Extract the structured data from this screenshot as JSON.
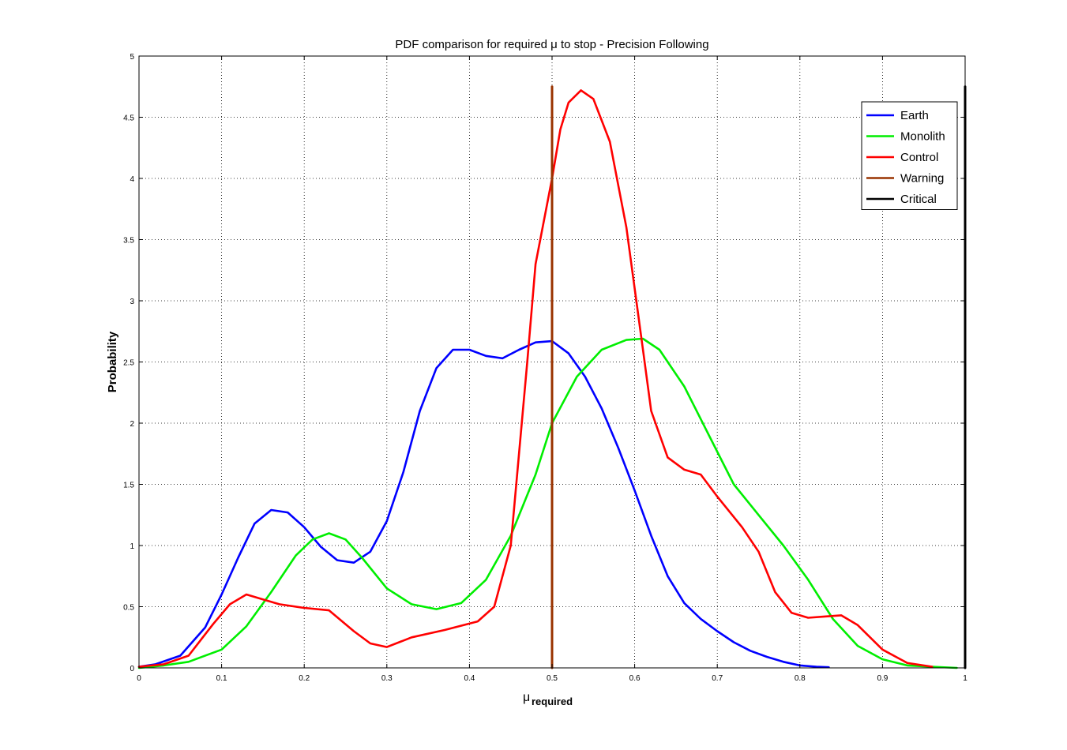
{
  "chart_data": {
    "type": "line",
    "title": "PDF comparison for required μ to stop - Precision Following",
    "xlabel_main": "μ",
    "xlabel_sub": "required",
    "ylabel": "Probability",
    "xlim": [
      0,
      1
    ],
    "ylim": [
      0,
      5
    ],
    "xticks": [
      0,
      0.1,
      0.2,
      0.3,
      0.4,
      0.5,
      0.6,
      0.7,
      0.8,
      0.9,
      1
    ],
    "xtick_labels": [
      "0",
      "0.1",
      "0.2",
      "0.3",
      "0.4",
      "0.5",
      "0.6",
      "0.7",
      "0.8",
      "0.9",
      "1"
    ],
    "yticks": [
      0,
      0.5,
      1,
      1.5,
      2,
      2.5,
      3,
      3.5,
      4,
      4.5,
      5
    ],
    "ytick_labels": [
      "0",
      "0.5",
      "1",
      "1.5",
      "2",
      "2.5",
      "3",
      "3.5",
      "4",
      "4.5",
      "5"
    ],
    "grid": true,
    "legend_position": "top-right",
    "series": [
      {
        "name": "Earth",
        "color": "#0000ff",
        "x": [
          0,
          0.02,
          0.05,
          0.08,
          0.1,
          0.12,
          0.14,
          0.16,
          0.18,
          0.2,
          0.22,
          0.24,
          0.26,
          0.28,
          0.3,
          0.32,
          0.34,
          0.36,
          0.38,
          0.4,
          0.42,
          0.44,
          0.46,
          0.48,
          0.5,
          0.52,
          0.54,
          0.56,
          0.58,
          0.6,
          0.62,
          0.64,
          0.66,
          0.68,
          0.7,
          0.72,
          0.74,
          0.76,
          0.78,
          0.8,
          0.82,
          0.835
        ],
        "y": [
          0.01,
          0.03,
          0.1,
          0.33,
          0.6,
          0.9,
          1.18,
          1.29,
          1.27,
          1.15,
          0.99,
          0.88,
          0.86,
          0.95,
          1.2,
          1.6,
          2.1,
          2.45,
          2.6,
          2.6,
          2.55,
          2.53,
          2.6,
          2.66,
          2.67,
          2.57,
          2.38,
          2.12,
          1.8,
          1.45,
          1.08,
          0.75,
          0.53,
          0.4,
          0.3,
          0.21,
          0.14,
          0.09,
          0.05,
          0.02,
          0.01,
          0.005
        ]
      },
      {
        "name": "Monolith",
        "color": "#00ee00",
        "x": [
          0,
          0.03,
          0.06,
          0.1,
          0.13,
          0.16,
          0.19,
          0.21,
          0.23,
          0.25,
          0.27,
          0.3,
          0.33,
          0.36,
          0.39,
          0.42,
          0.45,
          0.48,
          0.5,
          0.53,
          0.56,
          0.59,
          0.61,
          0.63,
          0.66,
          0.69,
          0.72,
          0.75,
          0.78,
          0.81,
          0.84,
          0.87,
          0.9,
          0.93,
          0.96,
          0.99
        ],
        "y": [
          0,
          0.02,
          0.05,
          0.15,
          0.34,
          0.62,
          0.92,
          1.05,
          1.1,
          1.05,
          0.9,
          0.65,
          0.52,
          0.48,
          0.53,
          0.72,
          1.08,
          1.58,
          2.0,
          2.38,
          2.6,
          2.68,
          2.69,
          2.6,
          2.3,
          1.9,
          1.5,
          1.25,
          1.0,
          0.72,
          0.4,
          0.18,
          0.07,
          0.02,
          0.01,
          0
        ]
      },
      {
        "name": "Control",
        "color": "#ff0000",
        "x": [
          0,
          0.03,
          0.06,
          0.09,
          0.11,
          0.13,
          0.15,
          0.17,
          0.2,
          0.23,
          0.26,
          0.28,
          0.3,
          0.33,
          0.37,
          0.41,
          0.43,
          0.45,
          0.47,
          0.48,
          0.5,
          0.51,
          0.52,
          0.535,
          0.55,
          0.57,
          0.59,
          0.61,
          0.62,
          0.64,
          0.66,
          0.68,
          0.7,
          0.73,
          0.75,
          0.77,
          0.79,
          0.81,
          0.83,
          0.85,
          0.87,
          0.9,
          0.93,
          0.96
        ],
        "y": [
          0.01,
          0.03,
          0.1,
          0.36,
          0.52,
          0.6,
          0.56,
          0.52,
          0.49,
          0.47,
          0.3,
          0.2,
          0.17,
          0.25,
          0.31,
          0.38,
          0.5,
          1.0,
          2.5,
          3.3,
          4.0,
          4.4,
          4.62,
          4.72,
          4.65,
          4.3,
          3.6,
          2.6,
          2.1,
          1.72,
          1.62,
          1.58,
          1.4,
          1.15,
          0.95,
          0.62,
          0.45,
          0.41,
          0.42,
          0.43,
          0.35,
          0.15,
          0.04,
          0.01
        ]
      },
      {
        "name": "Warning",
        "color": "#993300",
        "type": "vline",
        "x": [
          0.5,
          0.5
        ],
        "y": [
          0,
          4.75
        ]
      },
      {
        "name": "Critical",
        "color": "#000000",
        "type": "vline",
        "x": [
          1,
          1
        ],
        "y": [
          0,
          4.75
        ]
      }
    ]
  }
}
